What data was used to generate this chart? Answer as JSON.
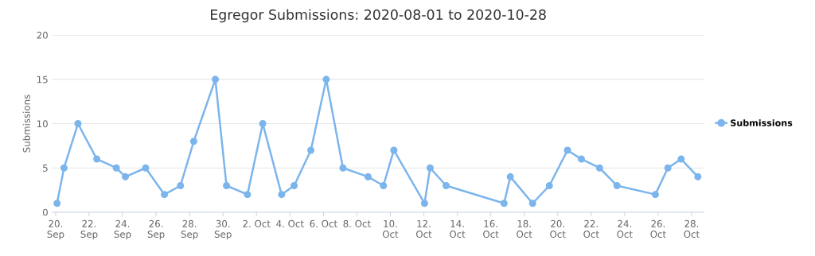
{
  "chart_data": {
    "type": "line",
    "title": "Egregor Submissions: 2020-08-01 to 2020-10-28",
    "ylabel": "Submissions",
    "x": [
      "2020-09-20T02:00",
      "2020-09-20T12:00",
      "2020-09-21T08:00",
      "2020-09-22T11:00",
      "2020-09-23T15:00",
      "2020-09-24T04:00",
      "2020-09-25T09:00",
      "2020-09-26T12:00",
      "2020-09-27T11:00",
      "2020-09-28T06:00",
      "2020-09-29T13:00",
      "2020-09-30T05:00",
      "2020-10-01T11:00",
      "2020-10-02T09:00",
      "2020-10-03T12:00",
      "2020-10-04T06:00",
      "2020-10-05T06:00",
      "2020-10-06T04:00",
      "2020-10-07T04:00",
      "2020-10-08T16:00",
      "2020-10-09T14:00",
      "2020-10-10T05:00",
      "2020-10-12T01:00",
      "2020-10-12T09:00",
      "2020-10-13T08:00",
      "2020-10-16T19:00",
      "2020-10-17T04:00",
      "2020-10-18T12:00",
      "2020-10-19T12:00",
      "2020-10-20T14:00",
      "2020-10-21T10:00",
      "2020-10-22T12:00",
      "2020-10-23T13:00",
      "2020-10-25T20:00",
      "2020-10-26T14:00",
      "2020-10-27T09:00",
      "2020-10-28T09:00"
    ],
    "series": [
      {
        "name": "Submissions",
        "color": "#7cb5ec",
        "values": [
          1,
          5,
          10,
          6,
          5,
          4,
          5,
          2,
          3,
          8,
          15,
          3,
          2,
          10,
          2,
          3,
          7,
          15,
          5,
          4,
          3,
          7,
          1,
          5,
          3,
          1,
          4,
          1,
          3,
          7,
          6,
          5,
          3,
          2,
          5,
          6,
          4
        ]
      }
    ],
    "xlim": [
      "2020-09-19T19:00",
      "2020-10-28T18:00"
    ],
    "xticks": [
      {
        "value": "2020-09-20",
        "label": "20.\nSep"
      },
      {
        "value": "2020-09-22",
        "label": "22.\nSep"
      },
      {
        "value": "2020-09-24",
        "label": "24.\nSep"
      },
      {
        "value": "2020-09-26",
        "label": "26.\nSep"
      },
      {
        "value": "2020-09-28",
        "label": "28.\nSep"
      },
      {
        "value": "2020-09-30",
        "label": "30.\nSep"
      },
      {
        "value": "2020-10-02",
        "label": "2. Oct"
      },
      {
        "value": "2020-10-04",
        "label": "4. Oct"
      },
      {
        "value": "2020-10-06",
        "label": "6. Oct"
      },
      {
        "value": "2020-10-08",
        "label": "8. Oct"
      },
      {
        "value": "2020-10-10",
        "label": "10.\nOct"
      },
      {
        "value": "2020-10-12",
        "label": "12.\nOct"
      },
      {
        "value": "2020-10-14",
        "label": "14.\nOct"
      },
      {
        "value": "2020-10-16",
        "label": "16.\nOct"
      },
      {
        "value": "2020-10-18",
        "label": "18.\nOct"
      },
      {
        "value": "2020-10-20",
        "label": "20.\nOct"
      },
      {
        "value": "2020-10-22",
        "label": "22.\nOct"
      },
      {
        "value": "2020-10-24",
        "label": "24.\nOct"
      },
      {
        "value": "2020-10-26",
        "label": "26.\nOct"
      },
      {
        "value": "2020-10-28",
        "label": "28.\nOct"
      }
    ],
    "ylim": [
      0,
      20
    ],
    "yticks": [
      0,
      5,
      10,
      15,
      20
    ],
    "grid": "y",
    "legend": "right",
    "marker": "circle",
    "line_style": "solid"
  }
}
